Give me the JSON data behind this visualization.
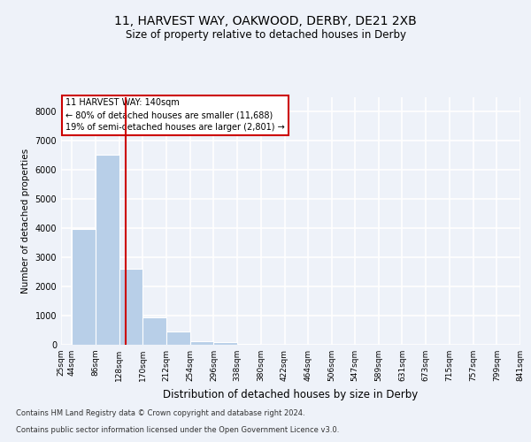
{
  "title1": "11, HARVEST WAY, OAKWOOD, DERBY, DE21 2XB",
  "title2": "Size of property relative to detached houses in Derby",
  "xlabel": "Distribution of detached houses by size in Derby",
  "ylabel": "Number of detached properties",
  "footer1": "Contains HM Land Registry data © Crown copyright and database right 2024.",
  "footer2": "Contains public sector information licensed under the Open Government Licence v3.0.",
  "annotation_line1": "11 HARVEST WAY: 140sqm",
  "annotation_line2": "← 80% of detached houses are smaller (11,688)",
  "annotation_line3": "19% of semi-detached houses are larger (2,801) →",
  "bar_color": "#b8cfe8",
  "vline_color": "#cc0000",
  "vline_x": 140,
  "bin_edges": [
    25,
    44,
    86,
    128,
    170,
    212,
    254,
    296,
    338,
    380,
    422,
    464,
    506,
    547,
    589,
    631,
    673,
    715,
    757,
    799,
    841
  ],
  "bin_labels": [
    "25sqm",
    "44sqm",
    "86sqm",
    "128sqm",
    "170sqm",
    "212sqm",
    "254sqm",
    "296sqm",
    "338sqm",
    "380sqm",
    "422sqm",
    "464sqm",
    "506sqm",
    "547sqm",
    "589sqm",
    "631sqm",
    "673sqm",
    "715sqm",
    "757sqm",
    "799sqm",
    "841sqm"
  ],
  "bar_heights": [
    10,
    3980,
    6520,
    2620,
    950,
    450,
    130,
    80,
    30,
    8,
    2,
    1,
    0,
    0,
    0,
    0,
    0,
    0,
    0,
    0
  ],
  "ylim": [
    0,
    8500
  ],
  "background_color": "#eef2f9",
  "grid_color": "#ffffff",
  "annotation_box_color": "#ffffff",
  "annotation_border_color": "#cc0000",
  "title1_fontsize": 10,
  "title2_fontsize": 8.5,
  "ylabel_fontsize": 7.5,
  "xlabel_fontsize": 8.5,
  "tick_fontsize": 6.5,
  "footer_fontsize": 6.0,
  "annotation_fontsize": 7.0
}
